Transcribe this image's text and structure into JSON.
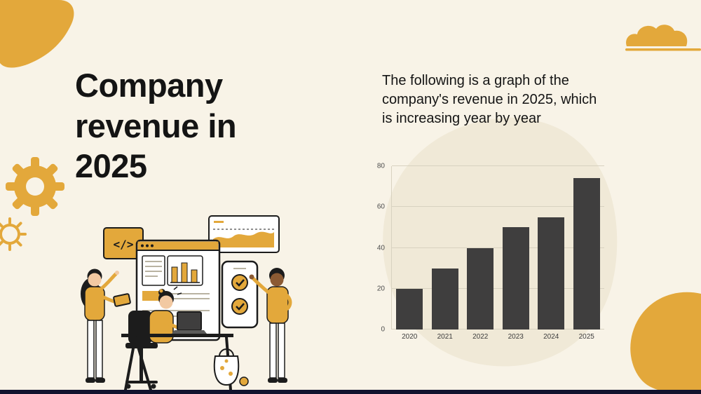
{
  "slide": {
    "title": "Company revenue in 2025",
    "description": "The following is a graph of the company's revenue in 2025, which is increasing year by year"
  },
  "chart_data": {
    "type": "bar",
    "categories": [
      "2020",
      "2021",
      "2022",
      "2023",
      "2024",
      "2025"
    ],
    "values": [
      20,
      30,
      40,
      50,
      55,
      74
    ],
    "title": "",
    "xlabel": "",
    "ylabel": "",
    "ylim": [
      0,
      80
    ],
    "yticks": [
      0,
      20,
      40,
      60,
      80
    ],
    "grid": true,
    "legend": false,
    "bar_color": "#3f3e3e"
  },
  "illustration": {
    "code_tag": "</>"
  },
  "colors": {
    "background": "#f8f3e7",
    "accent_yellow": "#e3a83b",
    "chart_backdrop": "#f0e9d7",
    "bar": "#3f3e3e",
    "text_dark": "#141414",
    "grid_line": "#d8d2c0",
    "footer_bar": "#12122d"
  }
}
